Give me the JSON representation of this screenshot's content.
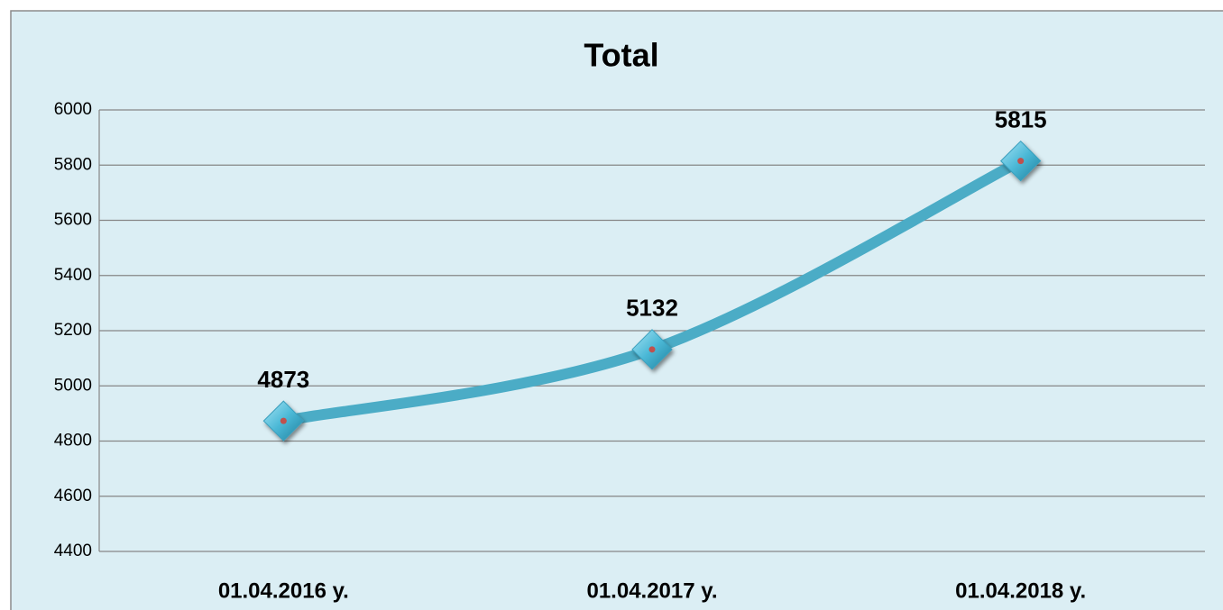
{
  "chart_data": {
    "type": "line",
    "title": "Total",
    "categories": [
      "01.04.2016 y.",
      "01.04.2017 y.",
      "01.04.2018 y."
    ],
    "series": [
      {
        "name": "Total",
        "color": "#4bacc6",
        "values": [
          4873,
          5132,
          5815
        ]
      }
    ],
    "ylim": [
      4400,
      6000
    ],
    "yticks": [
      4400,
      4600,
      4800,
      5000,
      5200,
      5400,
      5600,
      5800,
      6000
    ],
    "grid": true,
    "smooth": true
  }
}
